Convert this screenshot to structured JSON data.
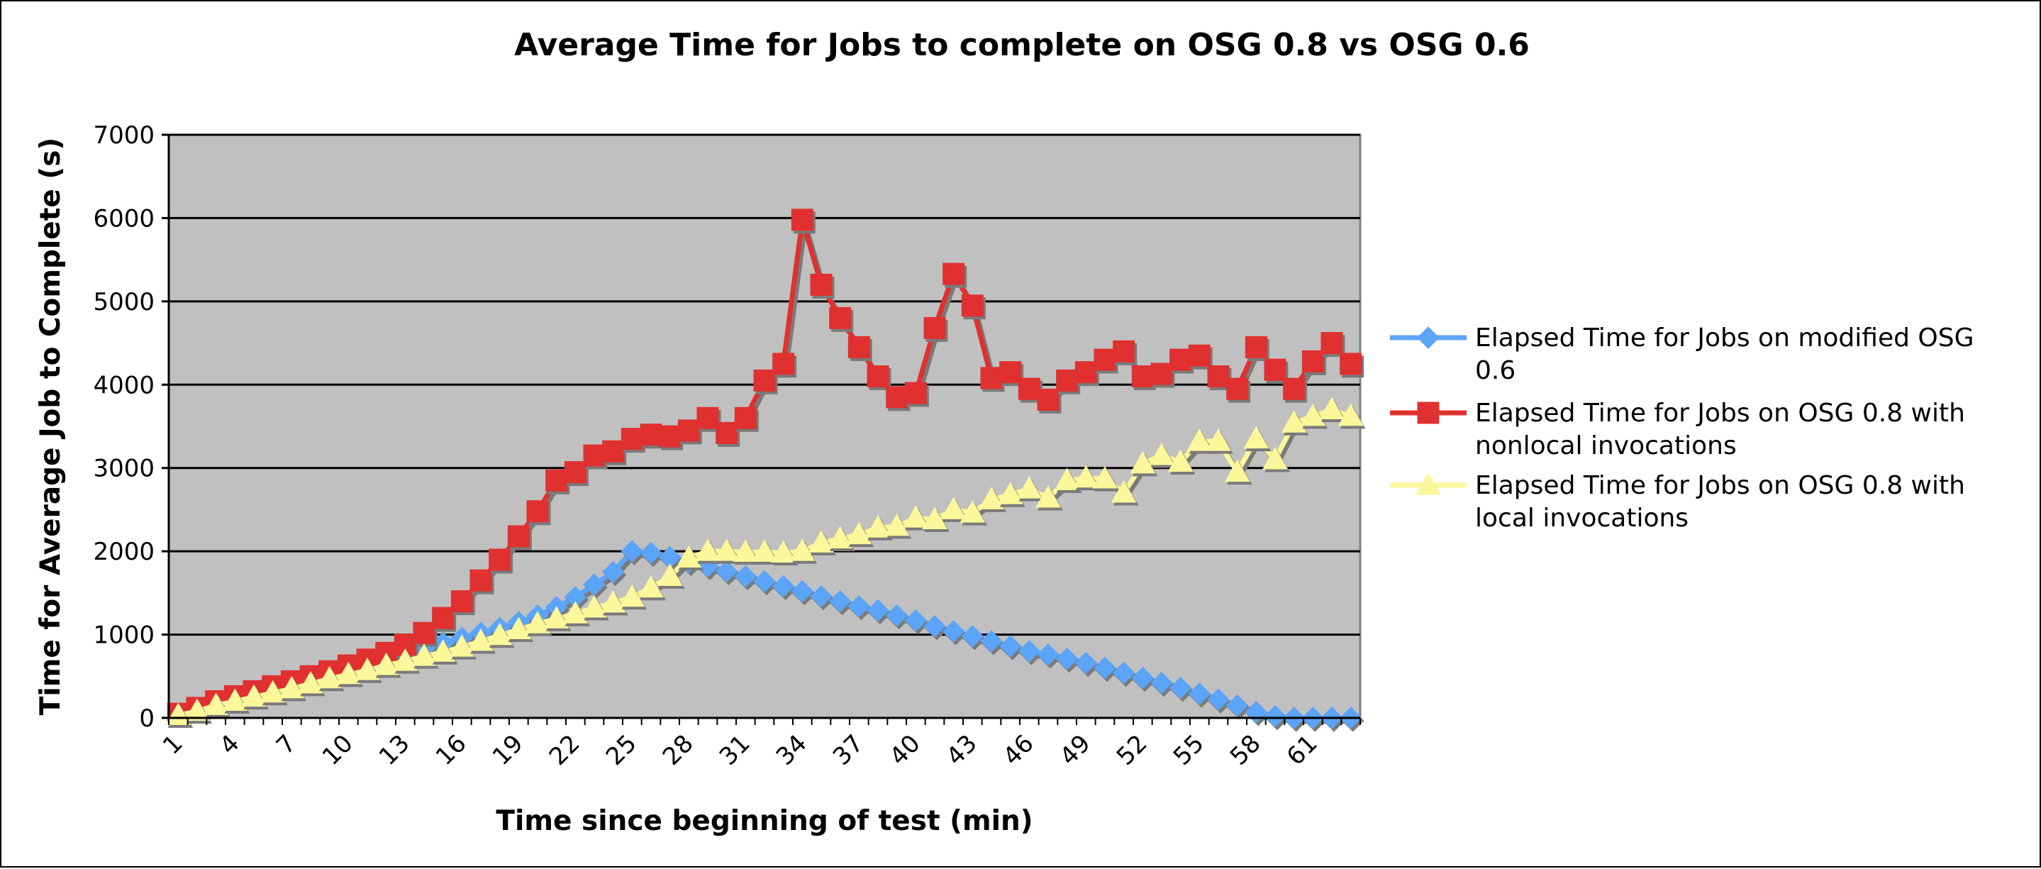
{
  "chart_data": {
    "type": "line",
    "title": "Average Time for Jobs to complete on OSG 0.8 vs OSG 0.6",
    "xlabel": "Time since beginning of test (min)",
    "ylabel": "Time for Average Job to Complete (s)",
    "ylim": [
      0,
      7000
    ],
    "yticks": [
      0,
      1000,
      2000,
      3000,
      4000,
      5000,
      6000,
      7000
    ],
    "xticks_shown": [
      1,
      4,
      7,
      10,
      13,
      16,
      19,
      22,
      25,
      28,
      31,
      34,
      37,
      40,
      43,
      46,
      49,
      52,
      55,
      58,
      61
    ],
    "x": [
      1,
      2,
      3,
      4,
      5,
      6,
      7,
      8,
      9,
      10,
      11,
      12,
      13,
      14,
      15,
      16,
      17,
      18,
      19,
      20,
      21,
      22,
      23,
      24,
      25,
      26,
      27,
      28,
      29,
      30,
      31,
      32,
      33,
      34,
      35,
      36,
      37,
      38,
      39,
      40,
      41,
      42,
      43,
      44,
      45,
      46,
      47,
      48,
      49,
      50,
      51,
      52,
      53,
      54,
      55,
      56,
      57,
      58,
      59,
      60,
      61,
      62,
      63
    ],
    "grid": "horizontal",
    "legend_position": "right",
    "plot_background": "#c0c0c0",
    "series": [
      {
        "name": "Elapsed Time for Jobs on modified OSG 0.6",
        "color": "#5ba4f8",
        "marker": "diamond",
        "values": [
          50,
          120,
          180,
          250,
          300,
          350,
          400,
          470,
          530,
          600,
          660,
          720,
          780,
          840,
          900,
          960,
          1020,
          1080,
          1150,
          1230,
          1330,
          1450,
          1600,
          1750,
          2000,
          1980,
          1930,
          1870,
          1820,
          1760,
          1700,
          1640,
          1580,
          1520,
          1460,
          1400,
          1340,
          1290,
          1230,
          1170,
          1100,
          1040,
          980,
          920,
          860,
          800,
          760,
          710,
          660,
          600,
          540,
          480,
          420,
          360,
          290,
          220,
          150,
          70,
          20,
          0,
          0,
          0,
          0
        ]
      },
      {
        "name": "Elapsed Time for Jobs on OSG 0.8 with nonlocal invocations",
        "color": "#e03030",
        "marker": "square",
        "values": [
          50,
          120,
          200,
          260,
          320,
          380,
          440,
          500,
          560,
          630,
          700,
          780,
          880,
          1020,
          1200,
          1400,
          1650,
          1900,
          2180,
          2480,
          2850,
          2950,
          3150,
          3200,
          3350,
          3400,
          3380,
          3450,
          3600,
          3420,
          3600,
          4050,
          4250,
          5980,
          5200,
          4800,
          4450,
          4100,
          3850,
          3900,
          4680,
          5330,
          4950,
          4080,
          4150,
          3950,
          3820,
          4050,
          4150,
          4300,
          4400,
          4100,
          4130,
          4300,
          4350,
          4100,
          3950,
          4450,
          4180,
          3950,
          4280,
          4500,
          4250
        ]
      },
      {
        "name": "Elapsed Time for Jobs on OSG 0.8 with local invocations",
        "color": "#fbf79a",
        "marker": "triangle",
        "values": [
          30,
          80,
          150,
          200,
          250,
          300,
          350,
          410,
          470,
          520,
          570,
          630,
          680,
          740,
          790,
          850,
          920,
          990,
          1060,
          1130,
          1190,
          1250,
          1320,
          1380,
          1450,
          1560,
          1700,
          1920,
          2000,
          2000,
          1990,
          1990,
          1980,
          2000,
          2100,
          2150,
          2200,
          2280,
          2300,
          2400,
          2380,
          2500,
          2460,
          2620,
          2680,
          2750,
          2640,
          2850,
          2880,
          2870,
          2700,
          3050,
          3150,
          3070,
          3320,
          3320,
          2950,
          3350,
          3100,
          3540,
          3620,
          3700,
          3620
        ]
      }
    ]
  }
}
